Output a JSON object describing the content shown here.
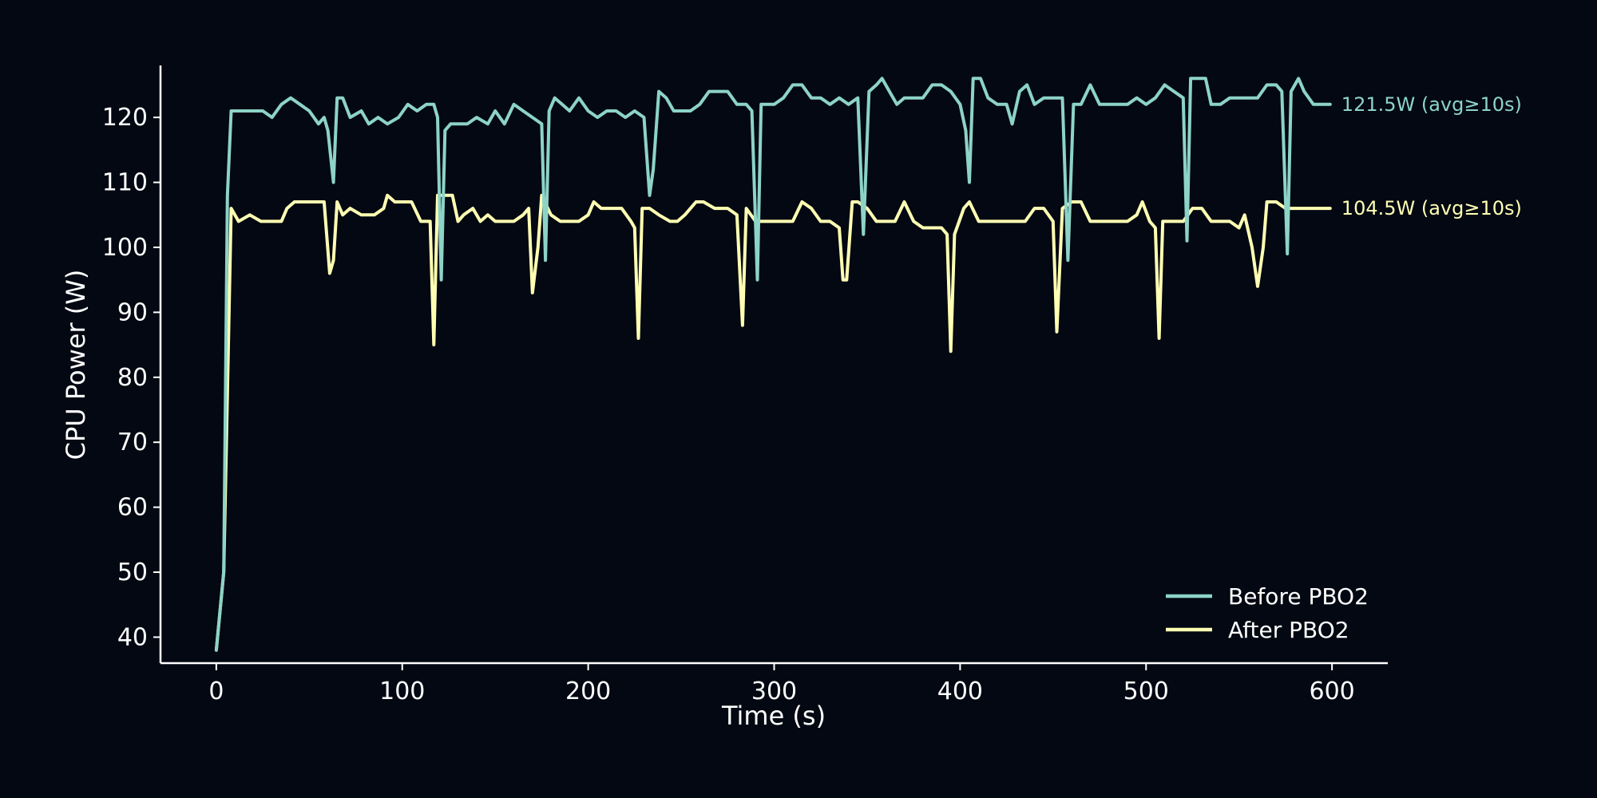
{
  "colors": {
    "background": "#030812",
    "axis": "#ffffff",
    "before": "#8dd3c7",
    "after": "#ffffb3"
  },
  "chart_data": {
    "type": "line",
    "title": "",
    "xlabel": "Time (s)",
    "ylabel": "CPU Power (W)",
    "xlim": [
      -30,
      630
    ],
    "ylim": [
      36,
      128
    ],
    "xticks": [
      0,
      100,
      200,
      300,
      400,
      500,
      600
    ],
    "yticks": [
      40,
      50,
      60,
      70,
      80,
      90,
      100,
      110,
      120
    ],
    "grid": false,
    "legend_position": "bottom-right",
    "series": [
      {
        "name": "Before PBO2",
        "color": "#8dd3c7",
        "end_label": "121.5W (avg≥10s)",
        "points": [
          [
            0,
            38
          ],
          [
            4,
            50
          ],
          [
            6,
            108
          ],
          [
            8,
            121
          ],
          [
            10,
            121
          ],
          [
            15,
            121
          ],
          [
            20,
            121
          ],
          [
            25,
            121
          ],
          [
            30,
            120
          ],
          [
            35,
            122
          ],
          [
            40,
            123
          ],
          [
            45,
            122
          ],
          [
            50,
            121
          ],
          [
            55,
            119
          ],
          [
            58,
            120
          ],
          [
            60,
            118
          ],
          [
            63,
            110
          ],
          [
            65,
            123
          ],
          [
            68,
            123
          ],
          [
            72,
            120
          ],
          [
            78,
            121
          ],
          [
            82,
            119
          ],
          [
            87,
            120
          ],
          [
            92,
            119
          ],
          [
            98,
            120
          ],
          [
            103,
            122
          ],
          [
            108,
            121
          ],
          [
            113,
            122
          ],
          [
            117,
            122
          ],
          [
            119,
            120
          ],
          [
            121,
            95
          ],
          [
            123,
            118
          ],
          [
            126,
            119
          ],
          [
            130,
            119
          ],
          [
            135,
            119
          ],
          [
            140,
            120
          ],
          [
            146,
            119
          ],
          [
            150,
            121
          ],
          [
            155,
            119
          ],
          [
            160,
            122
          ],
          [
            165,
            121
          ],
          [
            170,
            120
          ],
          [
            175,
            119
          ],
          [
            177,
            98
          ],
          [
            179,
            121
          ],
          [
            182,
            123
          ],
          [
            186,
            122
          ],
          [
            190,
            121
          ],
          [
            195,
            123
          ],
          [
            200,
            121
          ],
          [
            205,
            120
          ],
          [
            210,
            121
          ],
          [
            215,
            121
          ],
          [
            220,
            120
          ],
          [
            225,
            121
          ],
          [
            230,
            120
          ],
          [
            233,
            108
          ],
          [
            235,
            112
          ],
          [
            238,
            124
          ],
          [
            242,
            123
          ],
          [
            246,
            121
          ],
          [
            250,
            121
          ],
          [
            255,
            121
          ],
          [
            260,
            122
          ],
          [
            265,
            124
          ],
          [
            270,
            124
          ],
          [
            275,
            124
          ],
          [
            280,
            122
          ],
          [
            285,
            122
          ],
          [
            288,
            121
          ],
          [
            291,
            95
          ],
          [
            293,
            122
          ],
          [
            296,
            122
          ],
          [
            300,
            122
          ],
          [
            305,
            123
          ],
          [
            310,
            125
          ],
          [
            315,
            125
          ],
          [
            320,
            123
          ],
          [
            325,
            123
          ],
          [
            330,
            122
          ],
          [
            335,
            123
          ],
          [
            340,
            122
          ],
          [
            345,
            123
          ],
          [
            348,
            102
          ],
          [
            351,
            124
          ],
          [
            355,
            125
          ],
          [
            358,
            126
          ],
          [
            362,
            124
          ],
          [
            366,
            122
          ],
          [
            370,
            123
          ],
          [
            375,
            123
          ],
          [
            380,
            123
          ],
          [
            385,
            125
          ],
          [
            390,
            125
          ],
          [
            395,
            124
          ],
          [
            400,
            122
          ],
          [
            403,
            118
          ],
          [
            405,
            110
          ],
          [
            407,
            126
          ],
          [
            411,
            126
          ],
          [
            415,
            123
          ],
          [
            420,
            122
          ],
          [
            425,
            122
          ],
          [
            428,
            119
          ],
          [
            432,
            124
          ],
          [
            436,
            125
          ],
          [
            440,
            122
          ],
          [
            445,
            123
          ],
          [
            450,
            123
          ],
          [
            455,
            123
          ],
          [
            458,
            98
          ],
          [
            461,
            122
          ],
          [
            465,
            122
          ],
          [
            470,
            125
          ],
          [
            475,
            122
          ],
          [
            480,
            122
          ],
          [
            485,
            122
          ],
          [
            490,
            122
          ],
          [
            495,
            123
          ],
          [
            500,
            122
          ],
          [
            505,
            123
          ],
          [
            510,
            125
          ],
          [
            515,
            124
          ],
          [
            520,
            123
          ],
          [
            522,
            101
          ],
          [
            524,
            126
          ],
          [
            528,
            126
          ],
          [
            532,
            126
          ],
          [
            535,
            122
          ],
          [
            540,
            122
          ],
          [
            545,
            123
          ],
          [
            550,
            123
          ],
          [
            555,
            123
          ],
          [
            560,
            123
          ],
          [
            565,
            125
          ],
          [
            570,
            125
          ],
          [
            573,
            124
          ],
          [
            576,
            99
          ],
          [
            578,
            124
          ],
          [
            582,
            126
          ],
          [
            585,
            124
          ],
          [
            590,
            122
          ],
          [
            595,
            122
          ],
          [
            599,
            122
          ]
        ]
      },
      {
        "name": "After PBO2",
        "color": "#ffffb3",
        "end_label": "104.5W (avg≥10s)",
        "points": [
          [
            0,
            38
          ],
          [
            4,
            50
          ],
          [
            8,
            106
          ],
          [
            12,
            104
          ],
          [
            18,
            105
          ],
          [
            24,
            104
          ],
          [
            30,
            104
          ],
          [
            35,
            104
          ],
          [
            38,
            106
          ],
          [
            42,
            107
          ],
          [
            46,
            107
          ],
          [
            50,
            107
          ],
          [
            55,
            107
          ],
          [
            58,
            107
          ],
          [
            61,
            96
          ],
          [
            63,
            98
          ],
          [
            65,
            107
          ],
          [
            68,
            105
          ],
          [
            72,
            106
          ],
          [
            78,
            105
          ],
          [
            85,
            105
          ],
          [
            90,
            106
          ],
          [
            92,
            108
          ],
          [
            96,
            107
          ],
          [
            100,
            107
          ],
          [
            105,
            107
          ],
          [
            110,
            104
          ],
          [
            115,
            104
          ],
          [
            117,
            85
          ],
          [
            119,
            108
          ],
          [
            123,
            108
          ],
          [
            127,
            108
          ],
          [
            130,
            104
          ],
          [
            133,
            105
          ],
          [
            138,
            106
          ],
          [
            142,
            104
          ],
          [
            146,
            105
          ],
          [
            150,
            104
          ],
          [
            155,
            104
          ],
          [
            160,
            104
          ],
          [
            165,
            105
          ],
          [
            168,
            106
          ],
          [
            170,
            93
          ],
          [
            173,
            100
          ],
          [
            175,
            108
          ],
          [
            180,
            105
          ],
          [
            185,
            104
          ],
          [
            190,
            104
          ],
          [
            195,
            104
          ],
          [
            200,
            105
          ],
          [
            203,
            107
          ],
          [
            207,
            106
          ],
          [
            212,
            106
          ],
          [
            218,
            106
          ],
          [
            223,
            104
          ],
          [
            225,
            103
          ],
          [
            227,
            86
          ],
          [
            229,
            106
          ],
          [
            233,
            106
          ],
          [
            238,
            105
          ],
          [
            244,
            104
          ],
          [
            248,
            104
          ],
          [
            252,
            105
          ],
          [
            258,
            107
          ],
          [
            262,
            107
          ],
          [
            268,
            106
          ],
          [
            275,
            106
          ],
          [
            280,
            105
          ],
          [
            283,
            88
          ],
          [
            285,
            106
          ],
          [
            290,
            104
          ],
          [
            295,
            104
          ],
          [
            300,
            104
          ],
          [
            305,
            104
          ],
          [
            310,
            104
          ],
          [
            315,
            107
          ],
          [
            320,
            106
          ],
          [
            325,
            104
          ],
          [
            330,
            104
          ],
          [
            335,
            103
          ],
          [
            337,
            95
          ],
          [
            339,
            95
          ],
          [
            342,
            107
          ],
          [
            345,
            107
          ],
          [
            350,
            106
          ],
          [
            355,
            104
          ],
          [
            360,
            104
          ],
          [
            365,
            104
          ],
          [
            370,
            107
          ],
          [
            375,
            104
          ],
          [
            380,
            103
          ],
          [
            385,
            103
          ],
          [
            390,
            103
          ],
          [
            393,
            102
          ],
          [
            395,
            84
          ],
          [
            397,
            102
          ],
          [
            402,
            106
          ],
          [
            405,
            107
          ],
          [
            410,
            104
          ],
          [
            415,
            104
          ],
          [
            420,
            104
          ],
          [
            425,
            104
          ],
          [
            430,
            104
          ],
          [
            435,
            104
          ],
          [
            440,
            106
          ],
          [
            445,
            106
          ],
          [
            450,
            104
          ],
          [
            452,
            87
          ],
          [
            455,
            106
          ],
          [
            460,
            107
          ],
          [
            465,
            107
          ],
          [
            470,
            104
          ],
          [
            475,
            104
          ],
          [
            480,
            104
          ],
          [
            485,
            104
          ],
          [
            490,
            104
          ],
          [
            495,
            105
          ],
          [
            498,
            107
          ],
          [
            502,
            104
          ],
          [
            505,
            103
          ],
          [
            507,
            86
          ],
          [
            509,
            104
          ],
          [
            515,
            104
          ],
          [
            520,
            104
          ],
          [
            525,
            106
          ],
          [
            530,
            106
          ],
          [
            535,
            104
          ],
          [
            540,
            104
          ],
          [
            545,
            104
          ],
          [
            550,
            103
          ],
          [
            553,
            105
          ],
          [
            557,
            100
          ],
          [
            560,
            94
          ],
          [
            563,
            100
          ],
          [
            565,
            107
          ],
          [
            570,
            107
          ],
          [
            575,
            106
          ],
          [
            580,
            106
          ],
          [
            585,
            106
          ],
          [
            590,
            106
          ],
          [
            595,
            106
          ],
          [
            599,
            106
          ]
        ]
      }
    ]
  }
}
